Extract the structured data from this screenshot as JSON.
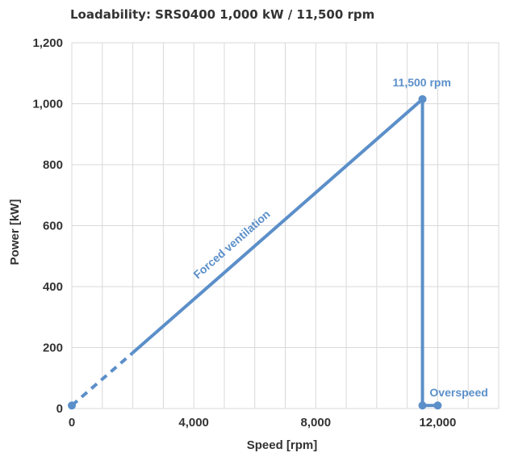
{
  "chart_data": {
    "type": "line",
    "title": "Loadability: SRS0400 1,000 kW / 11,500 rpm",
    "xlabel": "Speed [rpm]",
    "ylabel": "Power [kW]",
    "xlim": [
      0,
      14000
    ],
    "ylim": [
      0,
      1200
    ],
    "x_grid_step": 1000,
    "y_grid_step": 200,
    "x_ticks": [
      {
        "value": 0,
        "label": "0"
      },
      {
        "value": 4000,
        "label": "4,000"
      },
      {
        "value": 8000,
        "label": "8,000"
      },
      {
        "value": 12000,
        "label": "12,000"
      }
    ],
    "y_ticks": [
      {
        "value": 0,
        "label": "0"
      },
      {
        "value": 200,
        "label": "200"
      },
      {
        "value": 400,
        "label": "400"
      },
      {
        "value": 600,
        "label": "600"
      },
      {
        "value": 800,
        "label": "800"
      },
      {
        "value": 1000,
        "label": "1,000"
      },
      {
        "value": 1200,
        "label": "1,200"
      }
    ],
    "grid": true,
    "color": "#5b8fc9",
    "series": [
      {
        "style": "dashed",
        "x": [
          0,
          2000
        ],
        "y": [
          10,
          183
        ]
      },
      {
        "style": "solid",
        "x": [
          2000,
          11500,
          11500,
          12000
        ],
        "y": [
          183,
          1015,
          10,
          10
        ]
      }
    ],
    "markers": [
      {
        "x": 0,
        "y": 10
      },
      {
        "x": 11500,
        "y": 1015
      },
      {
        "x": 11500,
        "y": 10
      },
      {
        "x": 12000,
        "y": 10
      }
    ],
    "annotations": [
      {
        "text": "11,500 rpm",
        "x": 11500,
        "y": 1015
      },
      {
        "text": "Forced ventilation",
        "x": 6900,
        "y": 600
      },
      {
        "text": "Overspeed",
        "x": 12000,
        "y": 10
      }
    ]
  }
}
